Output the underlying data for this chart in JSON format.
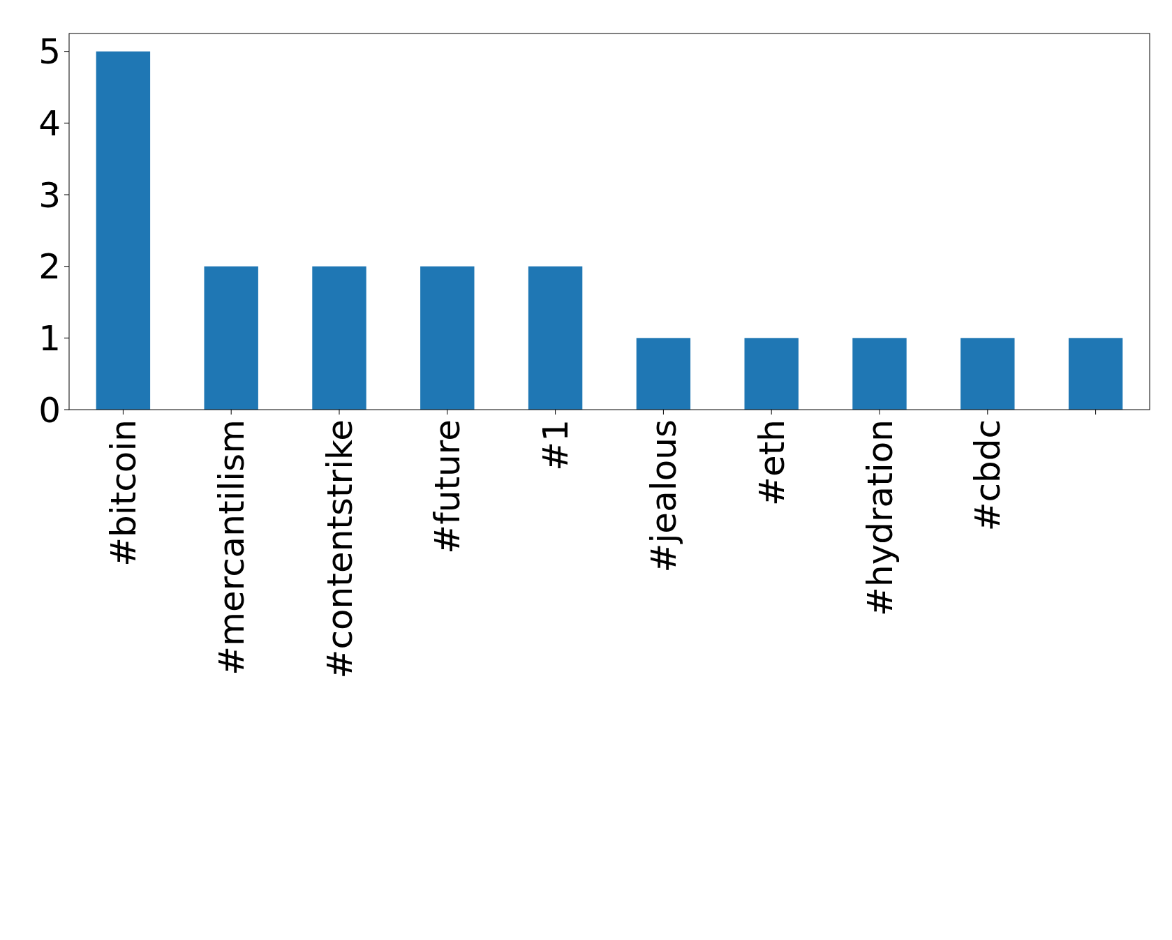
{
  "chart_data": {
    "type": "bar",
    "categories": [
      "#bitcoin",
      "#mercantilism",
      "#contentstrike",
      "#future",
      "#1",
      "#jealous",
      "#eth",
      "#hydration",
      "#cbdc",
      null
    ],
    "values": [
      5,
      2,
      2,
      2,
      2,
      1,
      1,
      1,
      1,
      1
    ],
    "color": "#1f77b4",
    "ylim": [
      0,
      5.25
    ],
    "yticks": [
      0,
      1,
      2,
      3,
      4,
      5
    ],
    "grid": false
  }
}
